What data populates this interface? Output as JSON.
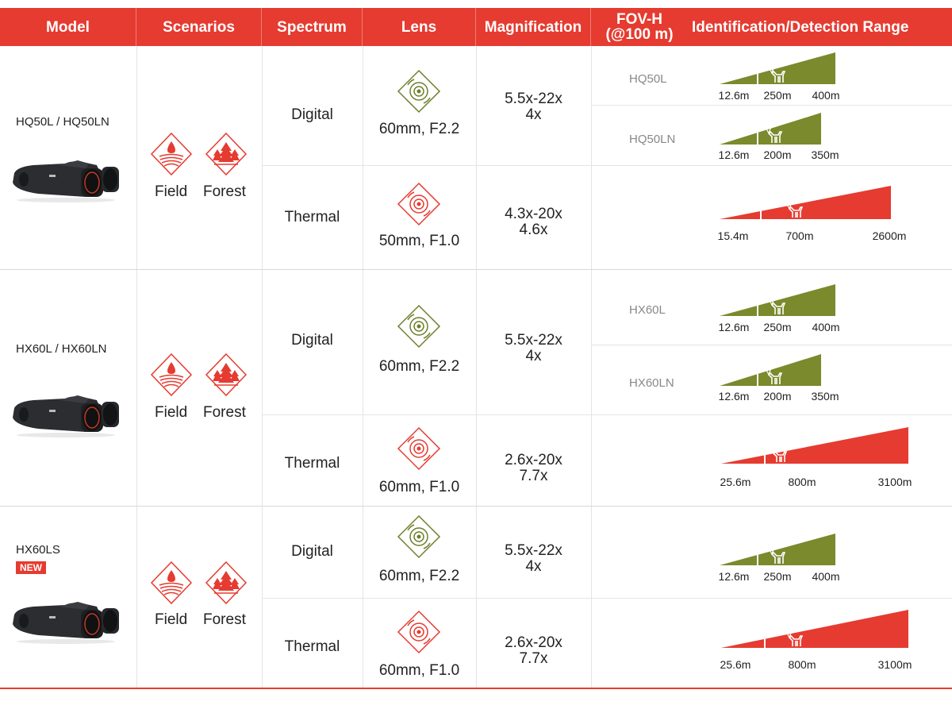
{
  "header": {
    "model": "Model",
    "scenarios": "Scenarios",
    "spectrum": "Spectrum",
    "lens": "Lens",
    "magnification": "Magnification",
    "fov_line1": "FOV-H",
    "fov_line2": "(@100 m)",
    "range": "Identification/Detection Range"
  },
  "scenario_labels": {
    "field": "Field",
    "forest": "Forest"
  },
  "colors": {
    "accent": "#e63b30",
    "digital": "#7a8a2c",
    "thermal": "#e63b30"
  },
  "groups": [
    {
      "model": "HQ50L / HQ50LN",
      "badge": "",
      "digital": {
        "spectrum": "Digital",
        "lens": "60mm, F2.2",
        "mag1": "5.5x-22x",
        "mag2": "4x"
      },
      "thermal": {
        "spectrum": "Thermal",
        "lens": "50mm, F1.0",
        "mag1": "4.3x-20x",
        "mag2": "4.6x"
      },
      "ranges": [
        {
          "sublabel": "HQ50L",
          "kind": "digital",
          "labels": [
            "12.6m",
            "250m",
            "400m"
          ]
        },
        {
          "sublabel": "HQ50LN",
          "kind": "digital",
          "labels": [
            "12.6m",
            "200m",
            "350m"
          ]
        },
        {
          "sublabel": "",
          "kind": "thermal",
          "labels": [
            "15.4m",
            "700m",
            "2600m"
          ]
        }
      ]
    },
    {
      "model": "HX60L / HX60LN",
      "badge": "",
      "digital": {
        "spectrum": "Digital",
        "lens": "60mm, F2.2",
        "mag1": "5.5x-22x",
        "mag2": "4x"
      },
      "thermal": {
        "spectrum": "Thermal",
        "lens": "60mm, F1.0",
        "mag1": "2.6x-20x",
        "mag2": "7.7x"
      },
      "ranges": [
        {
          "sublabel": "HX60L",
          "kind": "digital",
          "labels": [
            "12.6m",
            "250m",
            "400m"
          ]
        },
        {
          "sublabel": "HX60LN",
          "kind": "digital",
          "labels": [
            "12.6m",
            "200m",
            "350m"
          ]
        },
        {
          "sublabel": "",
          "kind": "thermal",
          "labels": [
            "25.6m",
            "800m",
            "3100m"
          ]
        }
      ]
    },
    {
      "model": "HX60LS",
      "badge": "NEW",
      "digital": {
        "spectrum": "Digital",
        "lens": "60mm, F2.2",
        "mag1": "5.5x-22x",
        "mag2": "4x"
      },
      "thermal": {
        "spectrum": "Thermal",
        "lens": "60mm, F1.0",
        "mag1": "2.6x-20x",
        "mag2": "7.7x"
      },
      "ranges": [
        {
          "sublabel": "",
          "kind": "digital",
          "labels": [
            "12.6m",
            "250m",
            "400m"
          ]
        },
        {
          "sublabel": "",
          "kind": "thermal",
          "labels": [
            "25.6m",
            "800m",
            "3100m"
          ]
        }
      ]
    }
  ]
}
